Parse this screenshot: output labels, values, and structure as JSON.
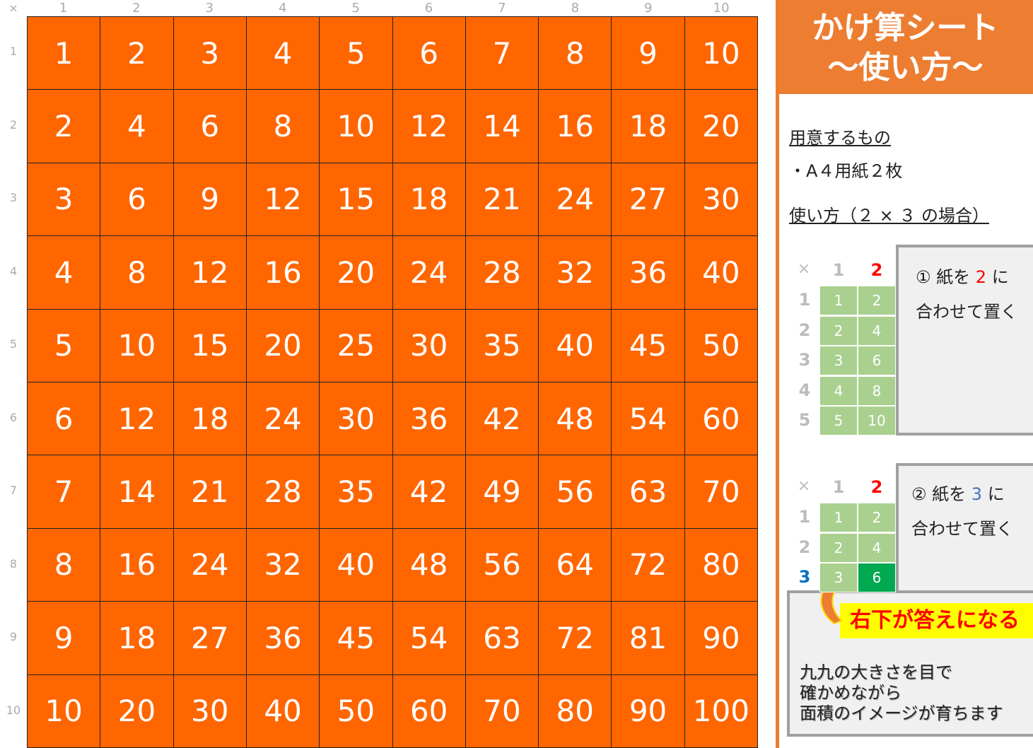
{
  "corner": "×",
  "col_headers": [
    "1",
    "2",
    "3",
    "4",
    "5",
    "6",
    "7",
    "8",
    "9",
    "10"
  ],
  "row_headers": [
    "1",
    "2",
    "3",
    "4",
    "5",
    "6",
    "7",
    "8",
    "9",
    "10"
  ],
  "table": [
    [
      1,
      2,
      3,
      4,
      5,
      6,
      7,
      8,
      9,
      10
    ],
    [
      2,
      4,
      6,
      8,
      10,
      12,
      14,
      16,
      18,
      20
    ],
    [
      3,
      6,
      9,
      12,
      15,
      18,
      21,
      24,
      27,
      30
    ],
    [
      4,
      8,
      12,
      16,
      20,
      24,
      28,
      32,
      36,
      40
    ],
    [
      5,
      10,
      15,
      20,
      25,
      30,
      35,
      40,
      45,
      50
    ],
    [
      6,
      12,
      18,
      24,
      30,
      36,
      42,
      48,
      54,
      60
    ],
    [
      7,
      14,
      21,
      28,
      35,
      42,
      49,
      56,
      63,
      70
    ],
    [
      8,
      16,
      24,
      32,
      40,
      48,
      56,
      64,
      72,
      80
    ],
    [
      9,
      18,
      27,
      36,
      45,
      54,
      63,
      72,
      81,
      90
    ],
    [
      10,
      20,
      30,
      40,
      50,
      60,
      70,
      80,
      90,
      100
    ]
  ],
  "colors": {
    "cell": "#ff6600",
    "title_bg": "#ed7d31",
    "mini_cell": "#a9d08e",
    "highlight": "#00a850",
    "red": "#ff0000",
    "blue": "#0070c0",
    "label_bg": "#ffff00"
  },
  "side": {
    "title_line1": "かけ算シート",
    "title_line2": "～使い方～",
    "needs_heading": "用意するもの",
    "needs_item": "・A４用紙２枚",
    "usage_heading": "使い方（２ × ３ の場合）",
    "example1": {
      "headers": [
        "×",
        "1",
        "2"
      ],
      "rows": [
        "1",
        "2",
        "3",
        "4",
        "5"
      ],
      "cells": [
        [
          "1",
          "2"
        ],
        [
          "2",
          "4"
        ],
        [
          "3",
          "6"
        ],
        [
          "4",
          "8"
        ],
        [
          "5",
          "10"
        ]
      ],
      "step_prefix": "① 紙を ",
      "step_num": "2",
      "step_suffix": " に",
      "step_line2": "合わせて置く"
    },
    "example2": {
      "headers": [
        "×",
        "1",
        "2"
      ],
      "rows": [
        "1",
        "2",
        "3"
      ],
      "cells": [
        [
          "1",
          "2"
        ],
        [
          "2",
          "4"
        ],
        [
          "3",
          "6"
        ]
      ],
      "step_prefix": "② 紙を ",
      "step_num": "3",
      "step_suffix": " に",
      "step_line2": "合わせて置く"
    },
    "answer_label": "右下が答えになる",
    "note": [
      "九九の大きさを目で",
      "確かめながら",
      "面積のイメージが育ちます"
    ]
  }
}
